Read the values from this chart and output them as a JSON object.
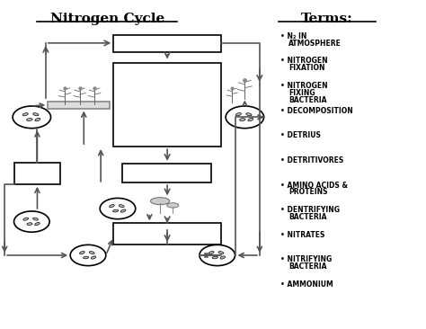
{
  "title": "Nitrogen Cycle",
  "terms_title": "Terms:",
  "background_color": "#ffffff",
  "terms": [
    "N₂ IN\nATMOSPHERE",
    "NITROGEN\nFIXATION",
    "NITROGEN\nFIXING\nBACTERIA",
    "DECOMPOSITION",
    "DETRIUS",
    "DETRITIVORES",
    "AMINO ACIDS &\nPROTEINS",
    "DENTRIFYING\nBACTERIA",
    "NITRATES",
    "NITRIFYING\nBACTERIA",
    "AMMONIUM"
  ],
  "box_color": "#000000",
  "box_fill": "#ffffff",
  "arrow_color": "#555555",
  "text_color": "#000000",
  "lw": 1.2
}
